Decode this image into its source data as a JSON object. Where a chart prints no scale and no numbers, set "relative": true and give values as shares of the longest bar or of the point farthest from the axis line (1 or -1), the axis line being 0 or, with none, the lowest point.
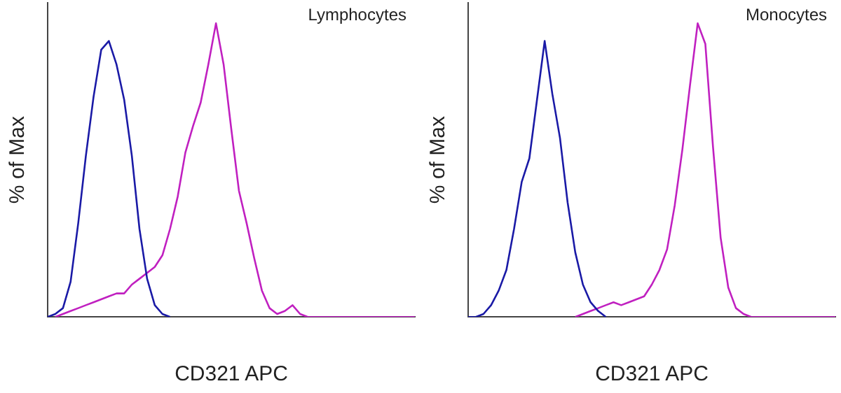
{
  "chart_data": [
    {
      "type": "line",
      "title": "Lymphocytes",
      "xlabel": "CD321 APC",
      "ylabel": "% of Max",
      "relative": true,
      "grid": false,
      "legend": false,
      "marker": "none",
      "categories": [
        null,
        null,
        null,
        null,
        null,
        null,
        null,
        null,
        null,
        null,
        null,
        null,
        null,
        null,
        null,
        null,
        null,
        null,
        null,
        null,
        null,
        null,
        null,
        null,
        null,
        null,
        null,
        null,
        null,
        null,
        null,
        null,
        null,
        null,
        null,
        null,
        null,
        null,
        null,
        null,
        null,
        null,
        null,
        null,
        null,
        null,
        null,
        null,
        null
      ],
      "series": [
        {
          "color": "#1a1aa6",
          "values": [
            0,
            0.01,
            0.03,
            0.12,
            0.32,
            0.55,
            0.75,
            0.91,
            0.94,
            0.86,
            0.74,
            0.55,
            0.3,
            0.13,
            0.04,
            0.01,
            0,
            null,
            null,
            null,
            null,
            null,
            null,
            null,
            null,
            null,
            null,
            null,
            null,
            null,
            null,
            null,
            null,
            null,
            null,
            null,
            null,
            null,
            null,
            null,
            null,
            null,
            null,
            null,
            null,
            null,
            null,
            null,
            null
          ]
        },
        {
          "color": "#c020c0",
          "values": [
            null,
            0,
            0.01,
            0.02,
            0.03,
            0.04,
            0.05,
            0.06,
            0.07,
            0.08,
            0.08,
            0.11,
            0.13,
            0.15,
            0.17,
            0.21,
            0.3,
            0.41,
            0.56,
            0.65,
            0.73,
            0.86,
            1,
            0.86,
            0.64,
            0.43,
            0.32,
            0.2,
            0.09,
            0.03,
            0.01,
            0.02,
            0.04,
            0.01,
            0,
            0,
            0,
            0,
            0,
            0,
            0,
            0,
            0,
            0,
            0,
            0,
            0,
            0,
            0
          ]
        }
      ]
    },
    {
      "type": "line",
      "title": "Monocytes",
      "xlabel": "CD321 APC",
      "ylabel": "% of Max",
      "relative": true,
      "grid": false,
      "legend": false,
      "marker": "none",
      "categories": [
        null,
        null,
        null,
        null,
        null,
        null,
        null,
        null,
        null,
        null,
        null,
        null,
        null,
        null,
        null,
        null,
        null,
        null,
        null,
        null,
        null,
        null,
        null,
        null,
        null,
        null,
        null,
        null,
        null,
        null,
        null,
        null,
        null,
        null,
        null,
        null,
        null,
        null,
        null,
        null,
        null,
        null,
        null,
        null,
        null,
        null,
        null,
        null,
        null
      ],
      "series": [
        {
          "color": "#1a1aa6",
          "values": [
            0,
            0,
            0.01,
            0.04,
            0.09,
            0.16,
            0.3,
            0.46,
            0.54,
            0.74,
            0.94,
            0.76,
            0.61,
            0.39,
            0.22,
            0.11,
            0.05,
            0.02,
            0,
            null,
            null,
            null,
            null,
            null,
            null,
            null,
            null,
            null,
            null,
            null,
            null,
            null,
            null,
            null,
            null,
            null,
            null,
            null,
            null,
            null,
            null,
            null,
            null,
            null,
            null,
            null,
            null,
            null,
            null
          ]
        },
        {
          "color": "#c020c0",
          "values": [
            null,
            null,
            null,
            null,
            null,
            null,
            null,
            null,
            null,
            null,
            null,
            null,
            null,
            null,
            0,
            0.01,
            0.02,
            0.03,
            0.04,
            0.05,
            0.04,
            0.05,
            0.06,
            0.07,
            0.11,
            0.16,
            0.23,
            0.38,
            0.57,
            0.79,
            1,
            0.93,
            0.58,
            0.27,
            0.1,
            0.03,
            0.01,
            0,
            0,
            0,
            0,
            0,
            0,
            0,
            0,
            0,
            0,
            0,
            0
          ]
        }
      ]
    }
  ]
}
